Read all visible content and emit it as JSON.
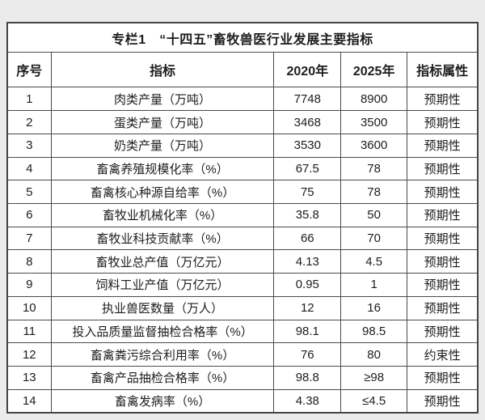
{
  "page": {
    "background_color": "#ebebeb",
    "table_border_color": "#4a4a4a",
    "table_background_color": "#ffffff",
    "text_color": "#1d1d1d"
  },
  "table": {
    "title": "专栏1　“十四五”畜牧兽医行业发展主要指标",
    "columns": {
      "no": "序号",
      "indicator": "指标",
      "y2020": "2020年",
      "y2025": "2025年",
      "attr": "指标属性"
    },
    "rows": [
      {
        "no": "1",
        "indicator": "肉类产量（万吨）",
        "y2020": "7748",
        "y2025": "8900",
        "attr": "预期性"
      },
      {
        "no": "2",
        "indicator": "蛋类产量（万吨）",
        "y2020": "3468",
        "y2025": "3500",
        "attr": "预期性"
      },
      {
        "no": "3",
        "indicator": "奶类产量（万吨）",
        "y2020": "3530",
        "y2025": "3600",
        "attr": "预期性"
      },
      {
        "no": "4",
        "indicator": "畜禽养殖规模化率（%）",
        "y2020": "67.5",
        "y2025": "78",
        "attr": "预期性"
      },
      {
        "no": "5",
        "indicator": "畜禽核心种源自给率（%）",
        "y2020": "75",
        "y2025": "78",
        "attr": "预期性"
      },
      {
        "no": "6",
        "indicator": "畜牧业机械化率（%）",
        "y2020": "35.8",
        "y2025": "50",
        "attr": "预期性"
      },
      {
        "no": "7",
        "indicator": "畜牧业科技贡献率（%）",
        "y2020": "66",
        "y2025": "70",
        "attr": "预期性"
      },
      {
        "no": "8",
        "indicator": "畜牧业总产值（万亿元）",
        "y2020": "4.13",
        "y2025": "4.5",
        "attr": "预期性"
      },
      {
        "no": "9",
        "indicator": "饲料工业产值（万亿元）",
        "y2020": "0.95",
        "y2025": "1",
        "attr": "预期性"
      },
      {
        "no": "10",
        "indicator": "执业兽医数量（万人）",
        "y2020": "12",
        "y2025": "16",
        "attr": "预期性"
      },
      {
        "no": "11",
        "indicator": "投入品质量监督抽检合格率（%）",
        "y2020": "98.1",
        "y2025": "98.5",
        "attr": "预期性"
      },
      {
        "no": "12",
        "indicator": "畜禽粪污综合利用率（%）",
        "y2020": "76",
        "y2025": "80",
        "attr": "约束性"
      },
      {
        "no": "13",
        "indicator": "畜禽产品抽检合格率（%）",
        "y2020": "98.8",
        "y2025": "≥98",
        "attr": "预期性"
      },
      {
        "no": "14",
        "indicator": "畜禽发病率（%）",
        "y2020": "4.38",
        "y2025": "≤4.5",
        "attr": "预期性"
      }
    ]
  }
}
